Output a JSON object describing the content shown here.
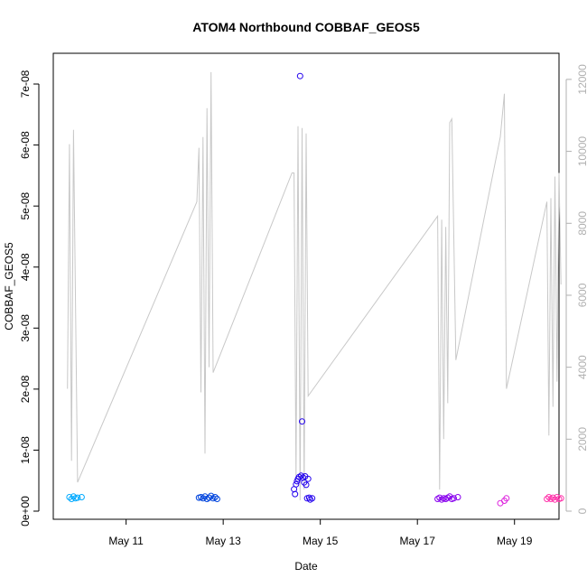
{
  "chart_data": {
    "type": "scatter",
    "title": "ATOM4 Northbound COBBAF_GEOS5",
    "xlabel": "Date",
    "ylabel": "COBBAF_GEOS5",
    "x_ticks": [
      "May 11",
      "May 13",
      "May 15",
      "May 17",
      "May 19"
    ],
    "y_ticks": [
      "0e+00",
      "1e-08",
      "2e-08",
      "3e-08",
      "4e-08",
      "5e-08",
      "6e-08",
      "7e-08"
    ],
    "y2_ticks": [
      "0",
      "2000",
      "4000",
      "6000",
      "8000",
      "10000",
      "12000"
    ],
    "ylim": [
      0,
      7.4e-08
    ],
    "y2lim": [
      0,
      12550
    ],
    "xlim": [
      "2016-05-09 12:00",
      "2016-05-19 22:00"
    ],
    "colors": {
      "line": "#c8c8c8",
      "right_axis": "#b0b0b0"
    },
    "series": [
      {
        "color": "#00aaff",
        "points": [
          [
            "2016-05-09 20:00",
            2.3e-09
          ],
          [
            "2016-05-09 21:00",
            2e-09
          ],
          [
            "2016-05-09 22:00",
            2.4e-09
          ],
          [
            "2016-05-09 23:00",
            2.1e-09
          ],
          [
            "2016-05-10 00:00",
            2.2e-09
          ],
          [
            "2016-05-10 02:00",
            2.3e-09
          ]
        ]
      },
      {
        "color": "#0044dd",
        "points": [
          [
            "2016-05-12 12:00",
            2.2e-09
          ],
          [
            "2016-05-12 13:00",
            2.3e-09
          ],
          [
            "2016-05-12 14:00",
            2.1e-09
          ],
          [
            "2016-05-12 15:00",
            2.4e-09
          ],
          [
            "2016-05-12 16:00",
            2e-09
          ],
          [
            "2016-05-12 17:00",
            2.2e-09
          ],
          [
            "2016-05-12 18:00",
            2.5e-09
          ],
          [
            "2016-05-12 19:00",
            2.1e-09
          ],
          [
            "2016-05-12 20:00",
            2.3e-09
          ],
          [
            "2016-05-12 21:00",
            2e-09
          ]
        ]
      },
      {
        "color": "#2200ee",
        "points": [
          [
            "2016-05-14 11:00",
            3.6e-09
          ],
          [
            "2016-05-14 11:30",
            2.8e-09
          ],
          [
            "2016-05-14 12:00",
            4.4e-09
          ],
          [
            "2016-05-14 12:30",
            4.9e-09
          ],
          [
            "2016-05-14 13:00",
            5.3e-09
          ],
          [
            "2016-05-14 13:30",
            5.6e-09
          ],
          [
            "2016-05-14 14:00",
            7.13e-08
          ],
          [
            "2016-05-14 14:30",
            5.8e-09
          ],
          [
            "2016-05-14 15:00",
            1.47e-08
          ],
          [
            "2016-05-14 15:30",
            5.5e-09
          ],
          [
            "2016-05-14 16:00",
            4.7e-09
          ],
          [
            "2016-05-14 16:30",
            5.7e-09
          ],
          [
            "2016-05-14 17:00",
            4.3e-09
          ],
          [
            "2016-05-14 17:30",
            2.1e-09
          ],
          [
            "2016-05-14 18:00",
            5.3e-09
          ],
          [
            "2016-05-14 18:30",
            2.2e-09
          ],
          [
            "2016-05-14 19:00",
            1.9e-09
          ],
          [
            "2016-05-14 20:00",
            2.1e-09
          ]
        ]
      },
      {
        "color": "#8800ee",
        "points": [
          [
            "2016-05-17 10:00",
            2e-09
          ],
          [
            "2016-05-17 11:00",
            2.2e-09
          ],
          [
            "2016-05-17 12:00",
            1.9e-09
          ],
          [
            "2016-05-17 13:00",
            2.1e-09
          ],
          [
            "2016-05-17 14:00",
            2e-09
          ],
          [
            "2016-05-17 15:00",
            2.2e-09
          ],
          [
            "2016-05-17 16:00",
            2.4e-09
          ],
          [
            "2016-05-17 17:00",
            2e-09
          ],
          [
            "2016-05-17 18:00",
            2.1e-09
          ],
          [
            "2016-05-17 20:00",
            2.3e-09
          ]
        ]
      },
      {
        "color": "#dd22dd",
        "points": [
          [
            "2016-05-18 17:00",
            1.3e-09
          ],
          [
            "2016-05-18 19:00",
            1.7e-09
          ],
          [
            "2016-05-18 20:00",
            2.1e-09
          ]
        ]
      },
      {
        "color": "#ff33aa",
        "points": [
          [
            "2016-05-19 16:00",
            2e-09
          ],
          [
            "2016-05-19 17:00",
            2.3e-09
          ],
          [
            "2016-05-19 18:00",
            2e-09
          ],
          [
            "2016-05-19 19:00",
            2.2e-09
          ],
          [
            "2016-05-19 20:00",
            1.9e-09
          ],
          [
            "2016-05-19 21:00",
            2.3e-09
          ],
          [
            "2016-05-19 22:00",
            2e-09
          ],
          [
            "2016-05-19 23:00",
            2.1e-09
          ]
        ]
      }
    ],
    "line_series": [
      [
        "2016-05-09 19:00",
        3400
      ],
      [
        "2016-05-09 20:00",
        10200
      ],
      [
        "2016-05-09 21:00",
        1400
      ],
      [
        "2016-05-09 22:00",
        10600
      ],
      [
        "2016-05-10 00:00",
        800
      ],
      [
        "2016-05-12 11:00",
        8600
      ],
      [
        "2016-05-12 12:00",
        10100
      ],
      [
        "2016-05-12 13:00",
        3300
      ],
      [
        "2016-05-12 14:00",
        10400
      ],
      [
        "2016-05-12 15:00",
        1600
      ],
      [
        "2016-05-12 16:00",
        11200
      ],
      [
        "2016-05-12 17:00",
        4000
      ],
      [
        "2016-05-12 18:00",
        12200
      ],
      [
        "2016-05-12 19:00",
        3850
      ],
      [
        "2016-05-14 10:00",
        9400
      ],
      [
        "2016-05-14 11:00",
        9400
      ],
      [
        "2016-05-14 12:00",
        900
      ],
      [
        "2016-05-14 13:00",
        10700
      ],
      [
        "2016-05-14 14:00",
        300
      ],
      [
        "2016-05-14 15:00",
        10650
      ],
      [
        "2016-05-14 16:00",
        600
      ],
      [
        "2016-05-14 17:00",
        10500
      ],
      [
        "2016-05-14 18:00",
        3200
      ],
      [
        "2016-05-17 10:00",
        8200
      ],
      [
        "2016-05-17 11:00",
        600
      ],
      [
        "2016-05-17 12:00",
        8100
      ],
      [
        "2016-05-17 13:00",
        2000
      ],
      [
        "2016-05-17 14:00",
        7900
      ],
      [
        "2016-05-17 15:00",
        3000
      ],
      [
        "2016-05-17 16:00",
        10800
      ],
      [
        "2016-05-17 17:00",
        10900
      ],
      [
        "2016-05-17 19:00",
        4200
      ],
      [
        "2016-05-18 17:00",
        10400
      ],
      [
        "2016-05-18 19:00",
        11600
      ],
      [
        "2016-05-18 20:00",
        3400
      ],
      [
        "2016-05-19 16:00",
        8600
      ],
      [
        "2016-05-19 17:00",
        2100
      ],
      [
        "2016-05-19 18:00",
        8700
      ],
      [
        "2016-05-19 19:00",
        2900
      ],
      [
        "2016-05-19 20:00",
        9300
      ],
      [
        "2016-05-19 21:00",
        3600
      ],
      [
        "2016-05-19 22:00",
        9400
      ],
      [
        "2016-05-19 23:00",
        6300
      ]
    ]
  }
}
